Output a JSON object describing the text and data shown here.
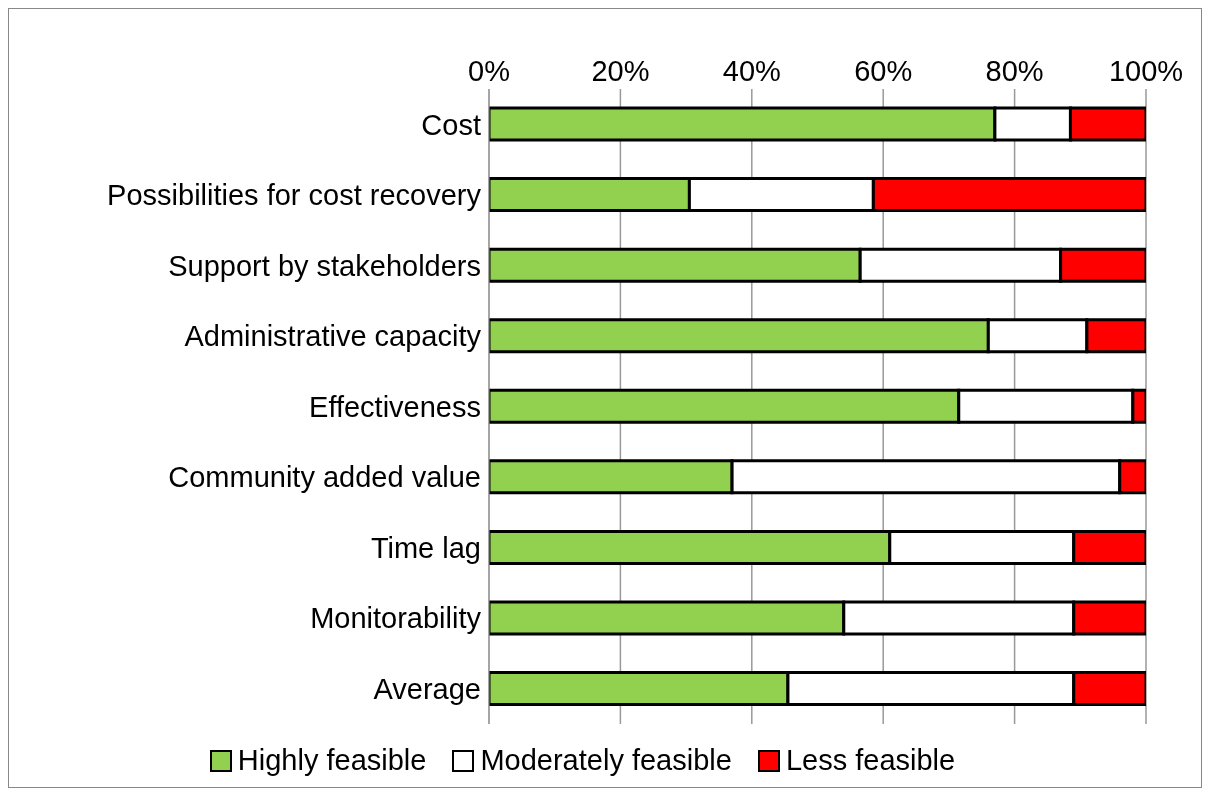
{
  "chart_data": {
    "type": "bar",
    "orientation": "horizontal",
    "stacked": true,
    "categories": [
      "Cost",
      "Possibilities for cost recovery",
      "Support by stakeholders",
      "Administrative capacity",
      "Effectiveness",
      "Community added value",
      "Time lag",
      "Monitorability",
      "Average"
    ],
    "series": [
      {
        "name": "Highly feasible",
        "color": "#92d050",
        "values": [
          77,
          30.5,
          56.5,
          76,
          71.5,
          37,
          61,
          54,
          45.5
        ]
      },
      {
        "name": "Moderately feasible",
        "color": "#ffffff",
        "values": [
          11.5,
          28,
          30.5,
          15,
          26.5,
          59,
          28,
          35,
          43.5
        ]
      },
      {
        "name": "Less feasible",
        "color": "#ff0000",
        "values": [
          11.5,
          41.5,
          13,
          9,
          2,
          4,
          11,
          11,
          11
        ]
      }
    ],
    "xlim": [
      0,
      100
    ],
    "xticks": [
      {
        "value": 0,
        "label": "0%"
      },
      {
        "value": 20,
        "label": "20%"
      },
      {
        "value": 40,
        "label": "40%"
      },
      {
        "value": 60,
        "label": "60%"
      },
      {
        "value": 80,
        "label": "80%"
      },
      {
        "value": 100,
        "label": "100%"
      }
    ],
    "grid": "x",
    "legend": "bottom"
  }
}
